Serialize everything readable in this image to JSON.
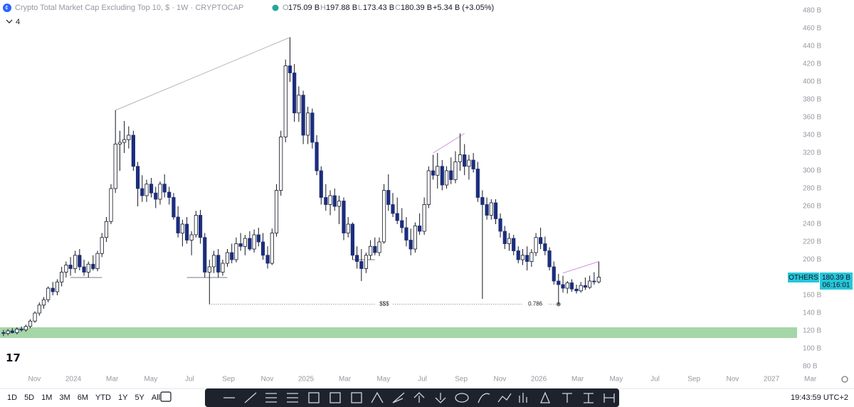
{
  "header": {
    "title": "Crypto Total Market Cap Excluding Top 10, $ · 1W · CRYPTOCAP",
    "open_key": "O",
    "open": "175.09 B",
    "high_key": "H",
    "high": "197.88 B",
    "low_key": "L",
    "low": "173.43 B",
    "close_key": "C",
    "close": "180.39 B",
    "change": "+5.34 B (+3.05%)",
    "indicator_count": "4"
  },
  "price_tag": {
    "symbol": "OTHERS",
    "price": "180.39 B",
    "countdown": "06:16:01"
  },
  "timeframes": [
    "1D",
    "5D",
    "1M",
    "3M",
    "6M",
    "YTD",
    "1Y",
    "5Y",
    "All"
  ],
  "clock": "19:43:59 UTC+2",
  "chart_data": {
    "type": "candlestick",
    "up_color": "#ffffff",
    "down_color": "#1c2d7c",
    "wick_color": "#131722",
    "xlim": [
      2023.685,
      2027.11
    ],
    "ylim": [
      76,
      492
    ],
    "yticks": [
      {
        "value": 80,
        "label": "80 B"
      },
      {
        "value": 100,
        "label": "100 B"
      },
      {
        "value": 120,
        "label": "120 B"
      },
      {
        "value": 140,
        "label": "140 B"
      },
      {
        "value": 160,
        "label": "160 B"
      },
      {
        "value": 180,
        "label": "180 B"
      },
      {
        "value": 200,
        "label": "200 B"
      },
      {
        "value": 220,
        "label": "220 B"
      },
      {
        "value": 240,
        "label": "240 B"
      },
      {
        "value": 260,
        "label": "260 B"
      },
      {
        "value": 280,
        "label": "280 B"
      },
      {
        "value": 300,
        "label": "300 B"
      },
      {
        "value": 320,
        "label": "320 B"
      },
      {
        "value": 340,
        "label": "340 B"
      },
      {
        "value": 360,
        "label": "360 B"
      },
      {
        "value": 380,
        "label": "380 B"
      },
      {
        "value": 400,
        "label": "400 B"
      },
      {
        "value": 420,
        "label": "420 B"
      },
      {
        "value": 440,
        "label": "440 B"
      },
      {
        "value": 460,
        "label": "460 B"
      },
      {
        "value": 480,
        "label": "480 B"
      }
    ],
    "xticks": [
      {
        "value": 2023.833,
        "label": "Nov"
      },
      {
        "value": 2024,
        "label": "2024"
      },
      {
        "value": 2024.167,
        "label": "Mar"
      },
      {
        "value": 2024.333,
        "label": "May"
      },
      {
        "value": 2024.5,
        "label": "Jul"
      },
      {
        "value": 2024.667,
        "label": "Sep"
      },
      {
        "value": 2024.833,
        "label": "Nov"
      },
      {
        "value": 2025,
        "label": "2025"
      },
      {
        "value": 2025.167,
        "label": "Mar"
      },
      {
        "value": 2025.333,
        "label": "May"
      },
      {
        "value": 2025.5,
        "label": "Jul"
      },
      {
        "value": 2025.667,
        "label": "Sep"
      },
      {
        "value": 2025.833,
        "label": "Nov"
      },
      {
        "value": 2026,
        "label": "2026"
      },
      {
        "value": 2026.167,
        "label": "Mar"
      },
      {
        "value": 2026.333,
        "label": "May"
      },
      {
        "value": 2026.5,
        "label": "Jul"
      },
      {
        "value": 2026.667,
        "label": "Sep"
      },
      {
        "value": 2026.833,
        "label": "Nov"
      },
      {
        "value": 2027,
        "label": "2027"
      },
      {
        "value": 2027.167,
        "label": "Mar"
      }
    ],
    "x": [
      2023.7,
      2023.719,
      2023.738,
      2023.758,
      2023.777,
      2023.796,
      2023.815,
      2023.835,
      2023.854,
      2023.873,
      2023.892,
      2023.912,
      2023.931,
      2023.95,
      2023.969,
      2023.988,
      2024.008,
      2024.027,
      2024.046,
      2024.065,
      2024.085,
      2024.104,
      2024.123,
      2024.142,
      2024.162,
      2024.181,
      2024.2,
      2024.219,
      2024.238,
      2024.258,
      2024.277,
      2024.296,
      2024.315,
      2024.335,
      2024.354,
      2024.373,
      2024.392,
      2024.412,
      2024.431,
      2024.45,
      2024.469,
      2024.488,
      2024.508,
      2024.527,
      2024.546,
      2024.565,
      2024.585,
      2024.604,
      2024.623,
      2024.642,
      2024.662,
      2024.681,
      2024.7,
      2024.719,
      2024.738,
      2024.758,
      2024.777,
      2024.796,
      2024.815,
      2024.835,
      2024.854,
      2024.873,
      2024.892,
      2024.912,
      2024.931,
      2024.95,
      2024.969,
      2024.988,
      2025.008,
      2025.027,
      2025.046,
      2025.065,
      2025.085,
      2025.104,
      2025.123,
      2025.142,
      2025.162,
      2025.181,
      2025.2,
      2025.219,
      2025.238,
      2025.258,
      2025.277,
      2025.296,
      2025.315,
      2025.335,
      2025.354,
      2025.373,
      2025.392,
      2025.412,
      2025.431,
      2025.45,
      2025.469,
      2025.488,
      2025.508,
      2025.527,
      2025.546,
      2025.565,
      2025.585,
      2025.604,
      2025.623,
      2025.642,
      2025.662,
      2025.681,
      2025.7,
      2025.719,
      2025.738,
      2025.758,
      2025.777,
      2025.796,
      2025.815,
      2025.835,
      2025.854,
      2025.873,
      2025.892,
      2025.912,
      2025.931,
      2025.95,
      2025.969,
      2025.988,
      2026.008,
      2026.027,
      2026.046,
      2026.065,
      2026.085,
      2026.104,
      2026.123,
      2026.142,
      2026.162,
      2026.181,
      2026.2,
      2026.219,
      2026.238,
      2026.258
    ],
    "ohlc": [
      [
        118,
        121,
        114,
        117
      ],
      [
        117,
        122,
        115,
        120
      ],
      [
        120,
        123,
        117,
        118
      ],
      [
        118,
        124,
        116,
        122
      ],
      [
        122,
        125,
        119,
        121
      ],
      [
        121,
        127,
        119,
        125
      ],
      [
        125,
        133,
        123,
        131
      ],
      [
        131,
        142,
        129,
        140
      ],
      [
        140,
        152,
        137,
        149
      ],
      [
        149,
        158,
        145,
        155
      ],
      [
        155,
        170,
        152,
        168
      ],
      [
        168,
        175,
        160,
        164
      ],
      [
        164,
        178,
        160,
        175
      ],
      [
        175,
        192,
        170,
        186
      ],
      [
        186,
        198,
        180,
        194
      ],
      [
        194,
        203,
        182,
        190
      ],
      [
        190,
        210,
        185,
        205
      ],
      [
        205,
        212,
        188,
        192
      ],
      [
        192,
        200,
        182,
        186
      ],
      [
        186,
        198,
        180,
        195
      ],
      [
        195,
        205,
        188,
        190
      ],
      [
        190,
        210,
        187,
        207
      ],
      [
        207,
        230,
        203,
        225
      ],
      [
        225,
        248,
        220,
        243
      ],
      [
        243,
        285,
        240,
        280
      ],
      [
        280,
        368,
        275,
        330
      ],
      [
        330,
        345,
        300,
        332
      ],
      [
        332,
        356,
        320,
        335
      ],
      [
        335,
        350,
        325,
        340
      ],
      [
        340,
        345,
        300,
        305
      ],
      [
        305,
        310,
        260,
        280
      ],
      [
        280,
        295,
        265,
        272
      ],
      [
        272,
        290,
        265,
        285
      ],
      [
        285,
        292,
        270,
        275
      ],
      [
        275,
        282,
        258,
        268
      ],
      [
        268,
        288,
        262,
        285
      ],
      [
        285,
        296,
        270,
        276
      ],
      [
        276,
        282,
        262,
        270
      ],
      [
        270,
        275,
        245,
        248
      ],
      [
        248,
        260,
        225,
        230
      ],
      [
        230,
        245,
        215,
        240
      ],
      [
        240,
        248,
        218,
        222
      ],
      [
        222,
        232,
        205,
        228
      ],
      [
        228,
        255,
        225,
        250
      ],
      [
        250,
        256,
        218,
        225
      ],
      [
        225,
        230,
        180,
        186
      ],
      [
        186,
        200,
        150,
        192
      ],
      [
        192,
        210,
        185,
        205
      ],
      [
        205,
        212,
        180,
        186
      ],
      [
        186,
        200,
        182,
        196
      ],
      [
        196,
        212,
        192,
        208
      ],
      [
        208,
        218,
        196,
        200
      ],
      [
        200,
        225,
        197,
        218
      ],
      [
        218,
        230,
        210,
        215
      ],
      [
        215,
        228,
        205,
        224
      ],
      [
        224,
        232,
        210,
        212
      ],
      [
        212,
        234,
        208,
        228
      ],
      [
        228,
        236,
        215,
        220
      ],
      [
        220,
        230,
        200,
        205
      ],
      [
        205,
        215,
        190,
        196
      ],
      [
        196,
        235,
        194,
        230
      ],
      [
        230,
        285,
        226,
        278
      ],
      [
        278,
        345,
        272,
        338
      ],
      [
        338,
        425,
        332,
        418
      ],
      [
        418,
        450,
        400,
        410
      ],
      [
        410,
        420,
        355,
        365
      ],
      [
        365,
        395,
        355,
        385
      ],
      [
        385,
        390,
        330,
        340
      ],
      [
        340,
        372,
        330,
        365
      ],
      [
        365,
        370,
        325,
        332
      ],
      [
        332,
        340,
        295,
        300
      ],
      [
        300,
        305,
        262,
        270
      ],
      [
        270,
        285,
        255,
        262
      ],
      [
        262,
        278,
        250,
        272
      ],
      [
        272,
        280,
        255,
        260
      ],
      [
        260,
        272,
        240,
        266
      ],
      [
        266,
        270,
        222,
        230
      ],
      [
        230,
        248,
        225,
        240
      ],
      [
        240,
        242,
        200,
        205
      ],
      [
        205,
        215,
        190,
        198
      ],
      [
        198,
        212,
        176,
        190
      ],
      [
        190,
        208,
        185,
        205
      ],
      [
        205,
        222,
        200,
        215
      ],
      [
        215,
        225,
        205,
        208
      ],
      [
        208,
        225,
        204,
        220
      ],
      [
        220,
        285,
        218,
        278
      ],
      [
        278,
        296,
        255,
        262
      ],
      [
        262,
        275,
        248,
        252
      ],
      [
        252,
        270,
        240,
        244
      ],
      [
        244,
        258,
        230,
        236
      ],
      [
        236,
        248,
        215,
        222
      ],
      [
        222,
        235,
        205,
        212
      ],
      [
        212,
        242,
        208,
        238
      ],
      [
        238,
        252,
        228,
        232
      ],
      [
        232,
        270,
        228,
        262
      ],
      [
        262,
        305,
        258,
        300
      ],
      [
        300,
        318,
        290,
        295
      ],
      [
        295,
        320,
        280,
        305
      ],
      [
        305,
        312,
        278,
        284
      ],
      [
        284,
        305,
        280,
        300
      ],
      [
        300,
        315,
        285,
        290
      ],
      [
        290,
        322,
        286,
        310
      ],
      [
        310,
        342,
        300,
        318
      ],
      [
        318,
        330,
        295,
        305
      ],
      [
        305,
        318,
        290,
        312
      ],
      [
        312,
        320,
        298,
        302
      ],
      [
        302,
        310,
        265,
        270
      ],
      [
        270,
        278,
        156,
        262
      ],
      [
        262,
        270,
        245,
        250
      ],
      [
        250,
        268,
        245,
        264
      ],
      [
        264,
        268,
        240,
        246
      ],
      [
        246,
        252,
        225,
        232
      ],
      [
        232,
        238,
        212,
        218
      ],
      [
        218,
        230,
        210,
        224
      ],
      [
        224,
        228,
        205,
        210
      ],
      [
        210,
        215,
        196,
        200
      ],
      [
        200,
        212,
        194,
        205
      ],
      [
        205,
        215,
        188,
        198
      ],
      [
        198,
        212,
        192,
        208
      ],
      [
        208,
        230,
        204,
        225
      ],
      [
        225,
        236,
        212,
        218
      ],
      [
        218,
        226,
        205,
        210
      ],
      [
        210,
        214,
        188,
        192
      ],
      [
        192,
        198,
        172,
        176
      ],
      [
        176,
        184,
        150,
        172
      ],
      [
        172,
        182,
        163,
        168
      ],
      [
        168,
        176,
        162,
        174
      ],
      [
        174,
        178,
        164,
        167
      ],
      [
        167,
        172,
        162,
        165
      ],
      [
        165,
        175,
        163,
        171
      ],
      [
        171,
        180,
        166,
        169
      ],
      [
        169,
        182,
        167,
        176
      ],
      [
        176,
        186,
        172,
        175.09
      ],
      [
        175.09,
        197.88,
        173.43,
        180.39
      ]
    ],
    "zones": [
      {
        "from": 112,
        "to": 124,
        "color": "#a5d6a7"
      }
    ],
    "lines": [
      {
        "x": [
          2024.181,
          2024.931
        ],
        "y": [
          368,
          450
        ],
        "color": "#b2b5be",
        "dash": false
      },
      {
        "x": [
          2023.988,
          2024.123
        ],
        "y": [
          180,
          180
        ],
        "color": "#787b86",
        "dash": false
      },
      {
        "x": [
          2024.488,
          2024.662
        ],
        "y": [
          180,
          180
        ],
        "color": "#787b86",
        "dash": false
      },
      {
        "x": [
          2025.2,
          2025.296
        ],
        "y": [
          200,
          200
        ],
        "color": "#787b86",
        "dash": false
      },
      {
        "x": [
          2025.546,
          2025.681
        ],
        "y": [
          320,
          342
        ],
        "color": "#ce93d8",
        "dash": false
      },
      {
        "x": [
          2026.104,
          2026.258
        ],
        "y": [
          185,
          198
        ],
        "color": "#ce93d8",
        "dash": false
      },
      {
        "x": [
          2024.585,
          2026.085
        ],
        "y": [
          150,
          150
        ],
        "color": "#787b86",
        "dash": true
      }
    ],
    "annotations": [
      {
        "text": "$$$",
        "x": 2025.336,
        "y": 150
      },
      {
        "text": "0.786",
        "x": 2025.985,
        "y": 150
      }
    ]
  }
}
